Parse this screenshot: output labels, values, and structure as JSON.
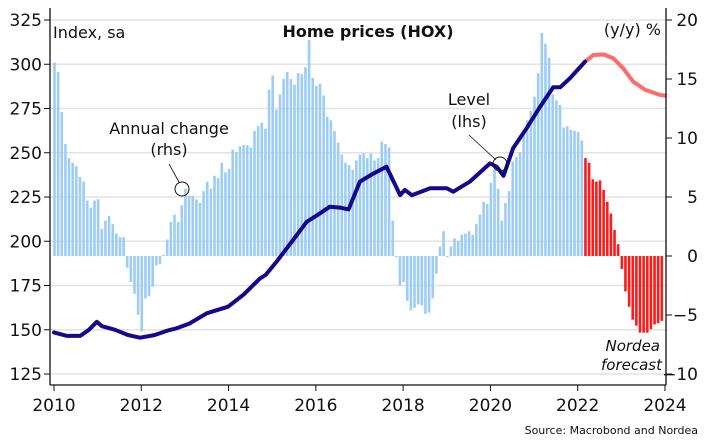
{
  "chart_data": {
    "type": "bar+line",
    "title": "Home prices (HOX)",
    "left_axis_label": "Index, sa",
    "right_axis_label": "(y/y) %",
    "source": "Source: Macrobond and Nordea",
    "left_ylim": [
      120,
      330
    ],
    "right_ylim": [
      -10.5,
      20
    ],
    "left_ticks": [
      "125",
      "150",
      "175",
      "200",
      "225",
      "250",
      "275",
      "300",
      "325"
    ],
    "right_ticks": [
      "-10",
      "-5",
      "0",
      "5",
      "10",
      "15",
      "20"
    ],
    "x_ticks": [
      "2010",
      "2012",
      "2014",
      "2016",
      "2018",
      "2020",
      "2022",
      "2024"
    ],
    "grid": "horizontal",
    "annotations": {
      "annual_change": [
        "Annual change",
        "(rhs)"
      ],
      "level": [
        "Level",
        "(lhs)"
      ],
      "forecast": [
        "Nordea",
        "forecast"
      ]
    },
    "colors": {
      "level": "#14088c",
      "level_forecast": "#ff6b6b",
      "bars": "#9dcdf7",
      "bars_forecast": "#ff1a1a",
      "grid": "#e3e3e3"
    },
    "bars": {
      "name": "Annual change (rhs)",
      "start": "2010-01",
      "frequency": "monthly",
      "forecast_from_index": 146,
      "values": [
        16.4,
        15.6,
        12.2,
        9.5,
        8.3,
        7.9,
        7.6,
        6.7,
        6.3,
        4.7,
        4.1,
        4.7,
        4.8,
        2.3,
        3.0,
        3.4,
        2.7,
        1.9,
        1.6,
        1.6,
        -1.0,
        -2.2,
        -3.2,
        -5.0,
        -6.4,
        -3.6,
        -3.4,
        -2.6,
        -0.8,
        -0.7,
        0.1,
        1.4,
        2.9,
        3.5,
        2.9,
        4.3,
        5.7,
        5.1,
        5.1,
        4.8,
        4.5,
        5.5,
        6.3,
        5.7,
        6.8,
        6.6,
        7.9,
        7.1,
        7.4,
        9.0,
        8.8,
        9.3,
        9.4,
        9.4,
        9.2,
        10.6,
        11.0,
        11.3,
        10.8,
        14.1,
        15.3,
        12.4,
        13.7,
        15.0,
        15.6,
        15.0,
        14.5,
        15.5,
        15.4,
        16.0,
        18.3,
        15.1,
        14.4,
        14.6,
        13.6,
        11.8,
        11.5,
        10.6,
        9.6,
        8.6,
        7.9,
        7.7,
        7.3,
        8.1,
        8.6,
        8.7,
        8.3,
        8.7,
        8.1,
        8.3,
        9.7,
        9.5,
        9.2,
        3.0,
        -0.1,
        -2.5,
        -2.2,
        -3.8,
        -4.6,
        -4.4,
        -4.1,
        -4.2,
        -4.9,
        -4.8,
        -3.6,
        -1.5,
        0.8,
        2.1,
        -0.1,
        0.8,
        1.5,
        1.3,
        1.8,
        1.9,
        2.1,
        1.8,
        2.7,
        3.5,
        4.6,
        4.4,
        6.2,
        7.4,
        5.7,
        3.0,
        4.5,
        5.5,
        8.0,
        8.4,
        8.8,
        10.4,
        11.5,
        12.3,
        13.5,
        15.5,
        18.9,
        18.0,
        16.8,
        13.7,
        13.2,
        12.8,
        10.9,
        11.0,
        10.7,
        10.6,
        10.5,
        9.8,
        8.3,
        7.9,
        6.5,
        6.3,
        6.4,
        5.6,
        4.6,
        3.6,
        2.2,
        1.0,
        -1.1,
        -3.0,
        -4.3,
        -5.4,
        -5.9,
        -6.5,
        -6.5,
        -6.5,
        -6.2,
        -5.8,
        -5.7,
        -5.5
      ]
    },
    "level": {
      "name": "Level (lhs)",
      "x": [
        2010.0,
        2010.3,
        2010.6,
        2010.8,
        2010.98,
        2011.1,
        2011.4,
        2011.7,
        2011.97,
        2012.3,
        2012.6,
        2012.81,
        2013.1,
        2013.5,
        2013.99,
        2014.35,
        2014.72,
        2014.85,
        2015.1,
        2015.48,
        2015.79,
        2016.05,
        2016.32,
        2016.55,
        2016.75,
        2017.01,
        2017.3,
        2017.62,
        2017.93,
        2018.04,
        2018.2,
        2018.62,
        2019.0,
        2019.15,
        2019.53,
        2019.99,
        2020.15,
        2020.3,
        2020.52,
        2020.83,
        2021.14,
        2021.44,
        2021.6,
        2021.82,
        2022.17
      ],
      "values": [
        148.5,
        146.5,
        146.5,
        150,
        154.5,
        152,
        150,
        147,
        145.5,
        147,
        149.5,
        150.8,
        153.5,
        159.3,
        163,
        170,
        179,
        181,
        188.5,
        200.7,
        211,
        215,
        219.5,
        219,
        218,
        233.7,
        238,
        242.1,
        226.1,
        229,
        226,
        230,
        230,
        228,
        233.7,
        244,
        242,
        237,
        252.5,
        263.8,
        276,
        287,
        287,
        292,
        301.5
      ]
    },
    "level_forecast": {
      "x": [
        2022.17,
        2022.36,
        2022.6,
        2022.82,
        2023.05,
        2023.27,
        2023.55,
        2023.89,
        2024.0
      ],
      "values": [
        301.5,
        305.2,
        305.5,
        303.3,
        297.5,
        290.2,
        285.5,
        282.6,
        282.3
      ]
    }
  }
}
